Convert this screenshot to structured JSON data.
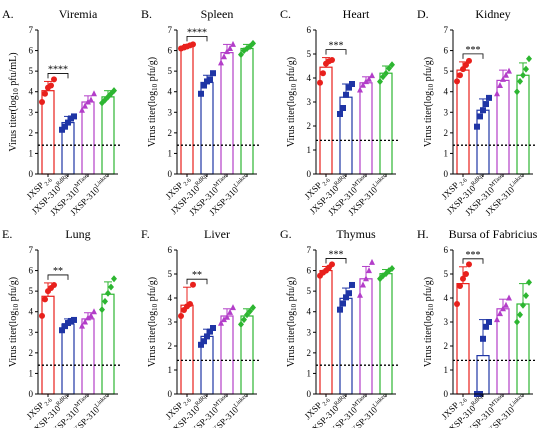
{
  "figure": {
    "shared_ylabel": "Virus titer(log",
    "x_categories": [
      {
        "base": "JXSP",
        "sup": "",
        "sub": "2-6"
      },
      {
        "base": "JXSP-310",
        "sup": "RdRp",
        "sub": ""
      },
      {
        "base": "JXSP-310",
        "sup": "MTase",
        "sub": ""
      },
      {
        "base": "JXSP-310",
        "sup": "Linker",
        "sub": ""
      }
    ],
    "colors": {
      "red": "#e8201c",
      "blue": "#1f35a5",
      "purple": "#b33ec9",
      "green": "#2db631"
    }
  },
  "chart_data": [
    {
      "type": "bar",
      "panel": "A.",
      "title": "Viremia",
      "ylabel_unit": "pfu/mL)",
      "ylim": [
        0,
        7
      ],
      "yticks": [
        0,
        1,
        2,
        3,
        4,
        5,
        6,
        7
      ],
      "detection_limit": 1.4,
      "significance": {
        "groups": [
          0,
          1
        ],
        "label": "****"
      },
      "series": [
        {
          "mean": 4.05,
          "sd": 0.45,
          "points": [
            3.5,
            3.9,
            4.2,
            4.3,
            4.6
          ]
        },
        {
          "mean": 2.5,
          "sd": 0.3,
          "points": [
            2.15,
            2.3,
            2.5,
            2.7,
            2.8
          ]
        },
        {
          "mean": 3.5,
          "sd": 0.3,
          "points": [
            3.1,
            3.3,
            3.5,
            3.6,
            3.9
          ]
        },
        {
          "mean": 3.75,
          "sd": 0.3,
          "points": [
            3.45,
            3.6,
            3.75,
            3.9,
            4.05
          ]
        }
      ]
    },
    {
      "type": "bar",
      "panel": "B.",
      "title": "Spleen",
      "ylabel_unit": "pfu/g)",
      "ylim": [
        0,
        7
      ],
      "yticks": [
        0,
        1,
        2,
        3,
        4,
        5,
        6,
        7
      ],
      "detection_limit": 1.4,
      "significance": {
        "groups": [
          0,
          1
        ],
        "label": "****"
      },
      "series": [
        {
          "mean": 6.2,
          "sd": 0.1,
          "points": [
            6.1,
            6.15,
            6.2,
            6.25,
            6.3
          ]
        },
        {
          "mean": 4.45,
          "sd": 0.35,
          "points": [
            3.9,
            4.3,
            4.5,
            4.6,
            4.9
          ]
        },
        {
          "mean": 5.9,
          "sd": 0.4,
          "points": [
            5.4,
            5.7,
            5.95,
            6.1,
            6.3
          ]
        },
        {
          "mean": 6.1,
          "sd": 0.2,
          "points": [
            5.8,
            6.0,
            6.1,
            6.2,
            6.35
          ]
        }
      ]
    },
    {
      "type": "bar",
      "panel": "C.",
      "title": "Heart",
      "ylabel_unit": "pfu/g)",
      "ylim": [
        0,
        6
      ],
      "yticks": [
        0,
        1,
        2,
        3,
        4,
        5,
        6
      ],
      "detection_limit": 1.4,
      "significance": {
        "groups": [
          0,
          1
        ],
        "label": "***"
      },
      "series": [
        {
          "mean": 4.45,
          "sd": 0.4,
          "points": [
            3.8,
            4.2,
            4.6,
            4.7,
            4.75
          ]
        },
        {
          "mean": 3.2,
          "sd": 0.55,
          "points": [
            2.5,
            2.75,
            3.3,
            3.6,
            3.75
          ]
        },
        {
          "mean": 3.8,
          "sd": 0.25,
          "points": [
            3.5,
            3.7,
            3.85,
            3.95,
            4.1
          ]
        },
        {
          "mean": 4.2,
          "sd": 0.3,
          "points": [
            3.85,
            4.05,
            4.2,
            4.4,
            4.55
          ]
        }
      ]
    },
    {
      "type": "bar",
      "panel": "D.",
      "title": "Kidney",
      "ylabel_unit": "pfu/g)",
      "ylim": [
        0,
        7
      ],
      "yticks": [
        0,
        1,
        2,
        3,
        4,
        5,
        6,
        7
      ],
      "detection_limit": 1.4,
      "significance": {
        "groups": [
          0,
          1
        ],
        "label": "***"
      },
      "series": [
        {
          "mean": 5.05,
          "sd": 0.4,
          "points": [
            4.5,
            4.8,
            5.1,
            5.3,
            5.5
          ]
        },
        {
          "mean": 3.1,
          "sd": 0.55,
          "points": [
            2.3,
            2.8,
            3.1,
            3.4,
            3.7
          ]
        },
        {
          "mean": 4.55,
          "sd": 0.5,
          "points": [
            3.9,
            4.3,
            4.6,
            4.8,
            5.0
          ]
        },
        {
          "mean": 4.8,
          "sd": 0.6,
          "points": [
            4.0,
            4.5,
            4.8,
            5.1,
            5.6
          ]
        }
      ]
    },
    {
      "type": "bar",
      "panel": "E.",
      "title": "Lung",
      "ylabel_unit": "pfu/g)",
      "ylim": [
        0,
        7
      ],
      "yticks": [
        0,
        1,
        2,
        3,
        4,
        5,
        6,
        7
      ],
      "detection_limit": 1.4,
      "significance": {
        "groups": [
          0,
          1
        ],
        "label": "**"
      },
      "series": [
        {
          "mean": 4.75,
          "sd": 0.65,
          "points": [
            3.8,
            4.6,
            5.0,
            5.15,
            5.3
          ]
        },
        {
          "mean": 3.4,
          "sd": 0.25,
          "points": [
            3.1,
            3.3,
            3.45,
            3.55,
            3.6
          ]
        },
        {
          "mean": 3.65,
          "sd": 0.3,
          "points": [
            3.3,
            3.5,
            3.7,
            3.8,
            4.0
          ]
        },
        {
          "mean": 4.85,
          "sd": 0.6,
          "points": [
            4.1,
            4.5,
            4.9,
            5.2,
            5.6
          ]
        }
      ]
    },
    {
      "type": "bar",
      "panel": "F.",
      "title": "Liver",
      "ylabel_unit": "pfu/g)",
      "ylim": [
        0,
        6
      ],
      "yticks": [
        0,
        1,
        2,
        3,
        4,
        5,
        6
      ],
      "detection_limit": 1.4,
      "significance": {
        "groups": [
          0,
          1
        ],
        "label": "**"
      },
      "series": [
        {
          "mean": 3.7,
          "sd": 0.75,
          "points": [
            3.25,
            3.5,
            3.65,
            3.75,
            4.55
          ]
        },
        {
          "mean": 2.4,
          "sd": 0.3,
          "points": [
            2.05,
            2.2,
            2.4,
            2.6,
            2.75
          ]
        },
        {
          "mean": 3.25,
          "sd": 0.3,
          "points": [
            2.95,
            3.1,
            3.2,
            3.4,
            3.6
          ]
        },
        {
          "mean": 3.25,
          "sd": 0.3,
          "points": [
            2.9,
            3.1,
            3.3,
            3.45,
            3.6
          ]
        }
      ]
    },
    {
      "type": "bar",
      "panel": "G.",
      "title": "Thymus",
      "ylabel_unit": "pfu/g)",
      "ylim": [
        0,
        7
      ],
      "yticks": [
        0,
        1,
        2,
        3,
        4,
        5,
        6,
        7
      ],
      "detection_limit": 1.4,
      "significance": {
        "groups": [
          0,
          1
        ],
        "label": "***"
      },
      "series": [
        {
          "mean": 6.0,
          "sd": 0.2,
          "points": [
            5.75,
            5.9,
            6.0,
            6.15,
            6.3
          ]
        },
        {
          "mean": 4.65,
          "sd": 0.5,
          "points": [
            4.1,
            4.4,
            4.7,
            4.9,
            5.3
          ]
        },
        {
          "mean": 5.6,
          "sd": 0.6,
          "points": [
            4.8,
            5.3,
            5.6,
            6.0,
            6.4
          ]
        },
        {
          "mean": 5.85,
          "sd": 0.2,
          "points": [
            5.6,
            5.75,
            5.85,
            6.0,
            6.1
          ]
        }
      ]
    },
    {
      "type": "bar",
      "panel": "H.",
      "title": "Bursa of Fabricius",
      "ylabel_unit": "pfu/g)",
      "ylim": [
        0,
        6
      ],
      "yticks": [
        0,
        1,
        2,
        3,
        4,
        5,
        6
      ],
      "detection_limit": 1.4,
      "significance": {
        "groups": [
          0,
          1
        ],
        "label": "***"
      },
      "series": [
        {
          "mean": 4.6,
          "sd": 0.7,
          "points": [
            3.75,
            4.5,
            4.8,
            5.0,
            5.4
          ]
        },
        {
          "mean": 1.6,
          "sd": 1.5,
          "points": [
            0.0,
            0.0,
            2.3,
            2.8,
            3.0
          ]
        },
        {
          "mean": 3.55,
          "sd": 0.4,
          "points": [
            3.1,
            3.35,
            3.55,
            3.7,
            4.0
          ]
        },
        {
          "mean": 3.75,
          "sd": 0.85,
          "points": [
            3.0,
            3.3,
            3.7,
            4.1,
            4.65
          ]
        }
      ]
    }
  ]
}
